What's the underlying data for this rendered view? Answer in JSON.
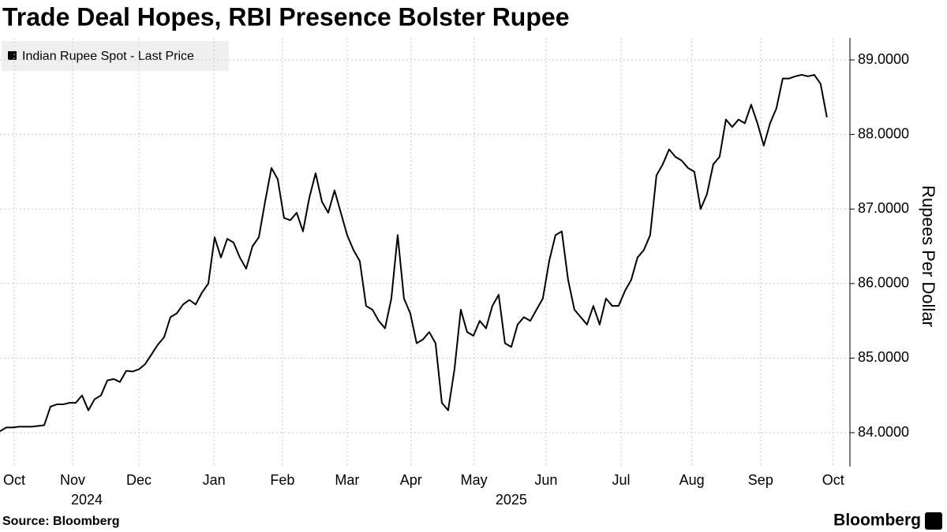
{
  "chart_data": {
    "type": "line",
    "title": "Trade Deal Hopes, RBI Presence Bolster Rupee",
    "y_axis_label": "Rupees Per Dollar",
    "source": "Source: Bloomberg",
    "brand": "Bloomberg",
    "grid": true,
    "legend": "top-left",
    "series": [
      {
        "name": "Indian Rupee Spot - Last Price",
        "color": "#000000",
        "values": [
          84.02,
          84.07,
          84.07,
          84.08,
          84.08,
          84.08,
          84.09,
          84.1,
          84.35,
          84.38,
          84.38,
          84.4,
          84.4,
          84.5,
          84.3,
          84.45,
          84.5,
          84.7,
          84.72,
          84.68,
          84.83,
          84.82,
          84.85,
          84.92,
          85.05,
          85.18,
          85.28,
          85.55,
          85.6,
          85.72,
          85.78,
          85.72,
          85.88,
          86.0,
          86.62,
          86.35,
          86.6,
          86.55,
          86.35,
          86.2,
          86.5,
          86.62,
          87.1,
          87.55,
          87.4,
          86.88,
          86.85,
          86.95,
          86.7,
          87.15,
          87.48,
          87.1,
          86.95,
          87.25,
          86.95,
          86.65,
          86.45,
          86.3,
          85.7,
          85.65,
          85.5,
          85.4,
          85.8,
          86.65,
          85.8,
          85.6,
          85.2,
          85.25,
          85.35,
          85.2,
          84.4,
          84.3,
          84.85,
          85.65,
          85.35,
          85.3,
          85.5,
          85.4,
          85.7,
          85.85,
          85.2,
          85.15,
          85.45,
          85.55,
          85.5,
          85.65,
          85.8,
          86.3,
          86.65,
          86.7,
          86.05,
          85.65,
          85.55,
          85.45,
          85.7,
          85.45,
          85.8,
          85.7,
          85.7,
          85.9,
          86.05,
          86.35,
          86.45,
          86.65,
          87.45,
          87.6,
          87.8,
          87.7,
          87.65,
          87.55,
          87.5,
          87.0,
          87.2,
          87.6,
          87.7,
          88.2,
          88.1,
          88.2,
          88.15,
          88.4,
          88.15,
          87.85,
          88.15,
          88.35,
          88.75,
          88.75,
          88.78,
          88.8,
          88.78,
          88.8,
          88.68,
          88.23
        ]
      }
    ],
    "xlim": [
      0,
      134.4
    ],
    "xticks": [
      {
        "value": 2.25,
        "label": "Oct"
      },
      {
        "value": 11.5,
        "label": "Nov"
      },
      {
        "value": 22,
        "label": "Dec"
      },
      {
        "value": 33.9,
        "label": "Jan"
      },
      {
        "value": 44.75,
        "label": "Feb"
      },
      {
        "value": 55,
        "label": "Mar"
      },
      {
        "value": 65.1,
        "label": "Apr"
      },
      {
        "value": 75.1,
        "label": "May"
      },
      {
        "value": 86.5,
        "label": "Jun"
      },
      {
        "value": 98.4,
        "label": "Jul"
      },
      {
        "value": 109.6,
        "label": "Aug"
      },
      {
        "value": 120.5,
        "label": "Sep"
      },
      {
        "value": 132,
        "label": "Oct"
      }
    ],
    "year_labels": [
      {
        "value": 13.75,
        "label": "2024"
      },
      {
        "value": 81,
        "label": "2025"
      }
    ],
    "ylim": [
      83.6,
      89.3
    ],
    "yticks": [
      {
        "value": 84,
        "label": "84.0000"
      },
      {
        "value": 85,
        "label": "85.0000"
      },
      {
        "value": 86,
        "label": "86.0000"
      },
      {
        "value": 87,
        "label": "87.0000"
      },
      {
        "value": 88,
        "label": "88.0000"
      },
      {
        "value": 89,
        "label": "89.0000"
      }
    ]
  }
}
